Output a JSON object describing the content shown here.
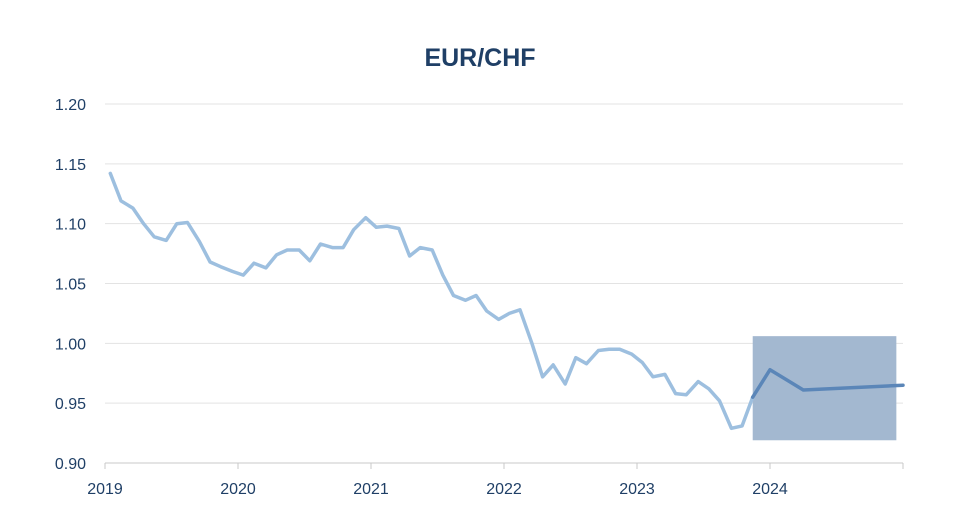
{
  "chart_data": {
    "type": "line",
    "title": "EUR/CHF",
    "xlabel": "",
    "ylabel": "",
    "xlim": [
      2019.0,
      2025.0
    ],
    "ylim": [
      0.9,
      1.2
    ],
    "y_ticks": [
      "1.20",
      "1.15",
      "1.10",
      "1.05",
      "1.00",
      "0.95",
      "0.90"
    ],
    "x_ticks": [
      "2019",
      "2020",
      "2021",
      "2022",
      "2023",
      "2024"
    ],
    "grid": true,
    "series": [
      {
        "color": "#9dbfdf",
        "x": [
          2019.04,
          2019.12,
          2019.21,
          2019.29,
          2019.37,
          2019.46,
          2019.54,
          2019.62,
          2019.71,
          2019.79,
          2019.87,
          2019.96,
          2020.04,
          2020.12,
          2020.21,
          2020.29,
          2020.37,
          2020.46,
          2020.54,
          2020.62,
          2020.71,
          2020.79,
          2020.87,
          2020.96,
          2021.04,
          2021.12,
          2021.21,
          2021.29,
          2021.37,
          2021.46,
          2021.54,
          2021.62,
          2021.71,
          2021.79,
          2021.87,
          2021.96,
          2022.04,
          2022.12,
          2022.21,
          2022.29,
          2022.37,
          2022.46,
          2022.54,
          2022.62,
          2022.71,
          2022.79,
          2022.87,
          2022.96,
          2023.04,
          2023.12,
          2023.21,
          2023.29,
          2023.37,
          2023.46,
          2023.54,
          2023.62,
          2023.71,
          2023.79,
          2023.87
        ],
        "values": [
          1.142,
          1.119,
          1.113,
          1.1,
          1.089,
          1.086,
          1.1,
          1.101,
          1.085,
          1.068,
          1.064,
          1.06,
          1.057,
          1.067,
          1.063,
          1.074,
          1.078,
          1.078,
          1.069,
          1.083,
          1.08,
          1.08,
          1.095,
          1.105,
          1.097,
          1.098,
          1.096,
          1.073,
          1.08,
          1.078,
          1.057,
          1.04,
          1.036,
          1.04,
          1.027,
          1.02,
          1.025,
          1.028,
          1.0,
          0.972,
          0.982,
          0.966,
          0.988,
          0.983,
          0.994,
          0.995,
          0.995,
          0.991,
          0.984,
          0.972,
          0.974,
          0.958,
          0.957,
          0.968,
          0.962,
          0.952,
          0.929,
          0.931,
          0.955
        ]
      },
      {
        "color": "#5b86b8",
        "x": [
          2023.87,
          2024.0,
          2024.25,
          2025.0
        ],
        "values": [
          0.955,
          0.978,
          0.961,
          0.965
        ]
      }
    ],
    "forecast_range": {
      "x": [
        2023.87,
        2024.95
      ],
      "y": [
        0.919,
        1.006
      ],
      "color": "#a3b8d0"
    }
  }
}
